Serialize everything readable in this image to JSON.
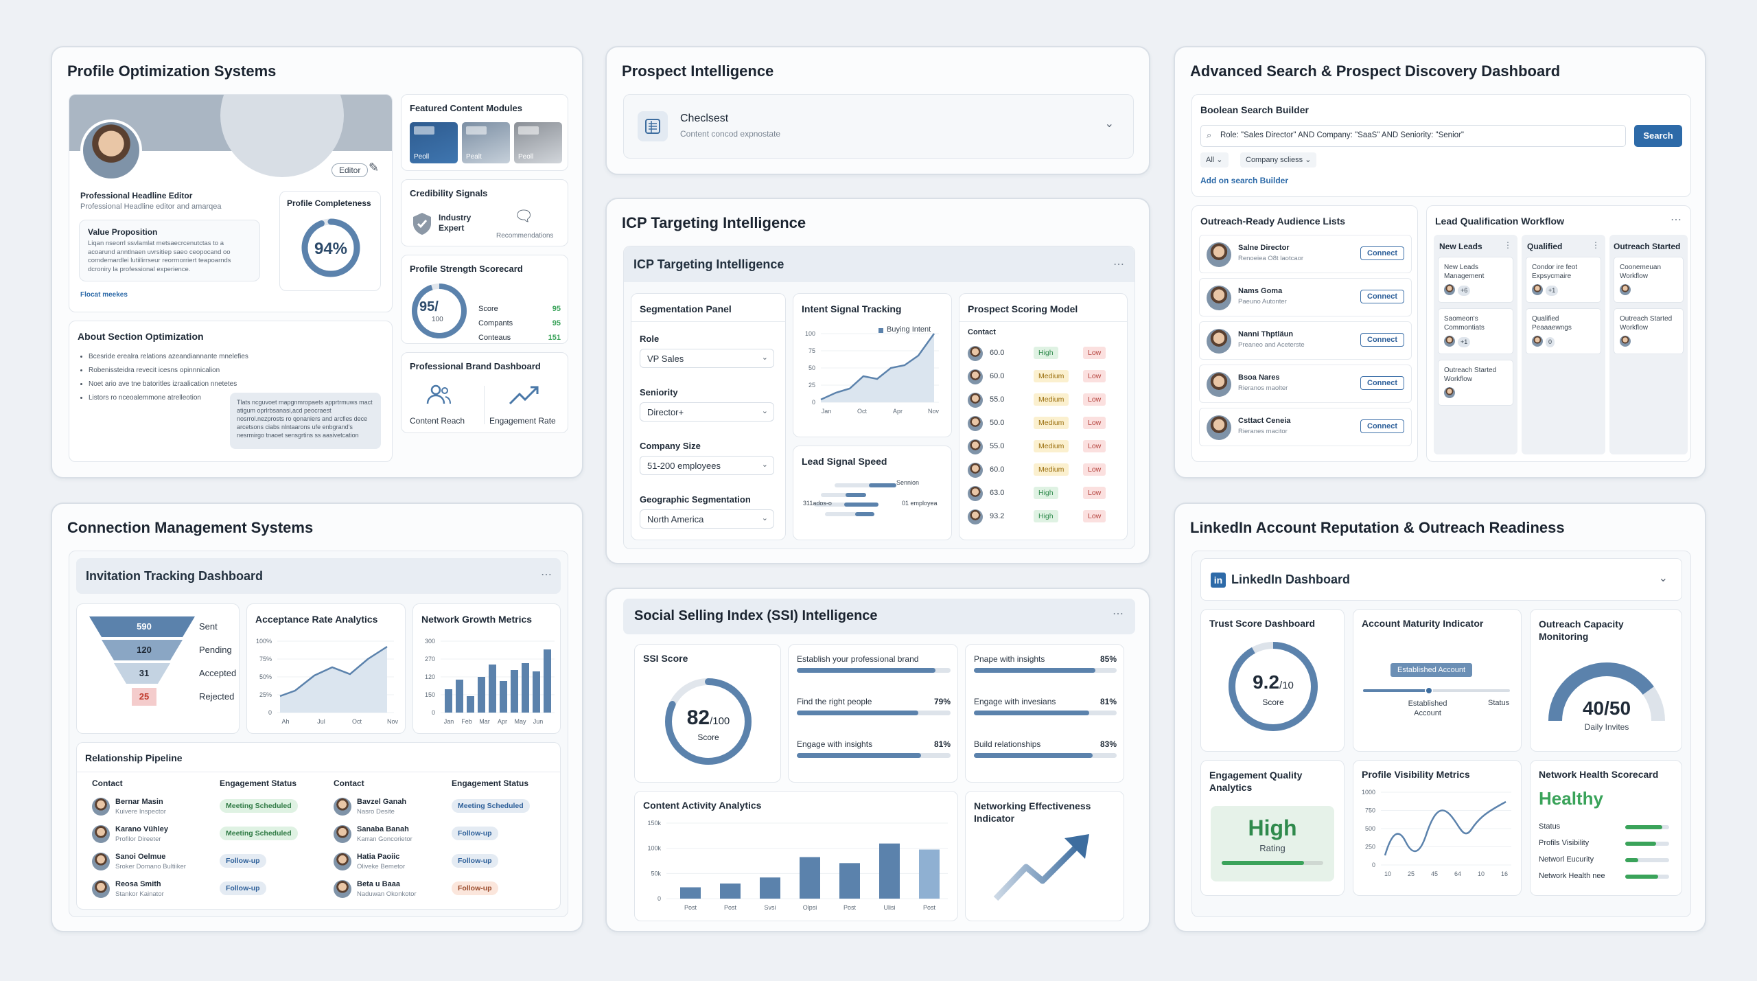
{
  "profile": {
    "title": "Profile Optimization Systems",
    "editor_badge": "Editor",
    "headline_title": "Professional Headline Editor",
    "headline_sub": "Professional Headline editor and amarqea",
    "value_prop_title": "Value Proposition",
    "value_prop_text": "Liqan nseorrl ssvlamlat metsaecrcenutctas to a acoarund anntlnaen uvrsitiep saeo ceopocand oo comdemardlei lutiilirrseur reorrnorriert teapoarnds dcroniry la professional experience.",
    "value_link": "Flocat meekes",
    "completeness_title": "Profile Completeness",
    "completeness_value": "94%",
    "completeness_pct": 94,
    "featured_title": "Featured Content Modules",
    "featured_items": [
      "Peoll",
      "Pealt",
      "Peoll"
    ],
    "credibility_title": "Credibility Signals",
    "credibility_item1": "Industry Expert",
    "credibility_item2": "Recommendations",
    "about_title": "About Section Optimization",
    "about_bullets": [
      "Bcesride erealra relations azeandiannante mnelefies",
      "Robenissteidra revecit icesns opinnnicalion",
      "Noet ario ave tne batoritles izraalication nnetetes",
      "Listors ro nceoalemmone atrelleotion"
    ],
    "about_tooltip": "Tlats ncguvoet mapgnmropaets apprtrmuws mact atigum oprlrbsanasi,acd peocraest nosrrol.nezprosts ro qonaniers and arcfies dece arcetsons ciabs nlntaarons ufe enbgrand's nesrmirgo tnaoet sensgrtins ss aasivetcation",
    "strength_title": "Profile Strength Scorecard",
    "strength_value": "95/",
    "strength_denom": "100",
    "strength_rows": [
      {
        "label": "Score",
        "value": "95"
      },
      {
        "label": "Compants",
        "value": "95"
      },
      {
        "label": "Conteaus",
        "value": "151"
      }
    ],
    "brand_title": "Professional Brand Dashboard",
    "brand_item1": "Content Reach",
    "brand_item2": "Engagement Rate"
  },
  "prospect": {
    "title": "Prospect Intelligence",
    "item_title": "Checlsest",
    "item_sub": "Content concod expnostate"
  },
  "icp": {
    "title": "ICP Targeting Intelligence",
    "inner_title": "ICP Targeting Intelligence",
    "seg_title": "Segmentation Panel",
    "role_label": "Role",
    "role_value": "VP Sales",
    "seniority_label": "Seniority",
    "seniority_value": "Director+",
    "size_label": "Company Size",
    "size_value": "51-200 employees",
    "geo_label": "Geographic Segmentation",
    "geo_value": "North America",
    "intent_title": "Intent Signal Tracking",
    "intent_legend": "Buying Intent",
    "intent_y": [
      "100",
      "75",
      "50",
      "25",
      "0"
    ],
    "intent_x": [
      "Jan",
      "Oct",
      "Apr",
      "Nov"
    ],
    "speed_title": "Lead Signal Speed",
    "speed_label1": "Sennion",
    "speed_label2": "311ados-o",
    "speed_label3": "01 employea",
    "scoring_title": "Prospect Scoring Model",
    "scoring_header": "Contact",
    "scoring_rows": [
      {
        "score": "60.0",
        "level": "High",
        "risk": "Low"
      },
      {
        "score": "60.0",
        "level": "Medium",
        "risk": "Low"
      },
      {
        "score": "55.0",
        "level": "Medium",
        "risk": "Low"
      },
      {
        "score": "50.0",
        "level": "Medium",
        "risk": "Low"
      },
      {
        "score": "55.0",
        "level": "Medium",
        "risk": "Low"
      },
      {
        "score": "60.0",
        "level": "Medium",
        "risk": "Low"
      },
      {
        "score": "63.0",
        "level": "High",
        "risk": "Low"
      },
      {
        "score": "93.2",
        "level": "High",
        "risk": "Low"
      }
    ]
  },
  "search": {
    "title": "Advanced Search & Prospect Discovery Dashboard",
    "builder_title": "Boolean Search Builder",
    "query": "Role: \"Sales Director\" AND Company: \"SaaS\" AND Seniority: \"Senior\"",
    "search_button": "Search",
    "filter_all": "All",
    "filter_company": "Company scliess",
    "add_link": "Add on search Builder",
    "lists_title": "Outreach-Ready Audience Lists",
    "connect_label": "Connect",
    "people": [
      {
        "name": "Salne Director",
        "sub": "Renoeiea O8t laotcaor"
      },
      {
        "name": "Nams Goma",
        "sub": "Paeuno Autonter"
      },
      {
        "name": "Nanni Thptläun",
        "sub": "Preaneo and Aceterste"
      },
      {
        "name": "Bsoa Nares",
        "sub": "Rieranos maolter"
      },
      {
        "name": "Csttact Ceneia",
        "sub": "Rieranes macitor"
      }
    ],
    "workflow_title": "Lead Qualification Workflow",
    "col1": "New Leads",
    "col2": "Qualified",
    "col3": "Outreach Started",
    "col1_cards": [
      {
        "text": "New Leads Management",
        "count": "+6"
      },
      {
        "text": "Saomeon's Commontiats",
        "count": "+1"
      },
      {
        "text": "Outreach Started Workflow",
        "count": ""
      }
    ],
    "col2_cards": [
      {
        "text": "Condor ire feot Expsycmaire",
        "count": "+1"
      },
      {
        "text": "Qualified Peaaaewngs",
        "count": "0"
      }
    ],
    "col3_cards": [
      {
        "text": "Coonemeuan Workflow",
        "count": ""
      },
      {
        "text": "Outreach Started Workflow",
        "count": ""
      }
    ]
  },
  "connections": {
    "title": "Connection Management Systems",
    "inner_title": "Invitation Tracking Dashboard",
    "funnel": [
      {
        "label": "Sent",
        "value": "590"
      },
      {
        "label": "Pending",
        "value": "120"
      },
      {
        "label": "Accepted",
        "value": "31"
      },
      {
        "label": "Rejected",
        "value": "25"
      }
    ],
    "acceptance_title": "Acceptance Rate Analytics",
    "acceptance_y": [
      "100%",
      "75%",
      "50%",
      "25%",
      "0"
    ],
    "acceptance_x": [
      "Ah",
      "Jul",
      "Oct",
      "Nov"
    ],
    "growth_title": "Network Growth Metrics",
    "growth_y": [
      "300",
      "270",
      "120",
      "150",
      "0"
    ],
    "growth_x": [
      "Jan",
      "Feb",
      "Mar",
      "Apr",
      "May",
      "Jun"
    ],
    "pipeline_title": "Relationship Pipeline",
    "pipeline_h1": "Contact",
    "pipeline_h2": "Engagement Status",
    "pipeline_h3": "Contact",
    "pipeline_h4": "Engagement Status",
    "pipeline_left": [
      {
        "name": "Bernar Masin",
        "sub": "Kuivere Inspector",
        "status": "Meeting Scheduled"
      },
      {
        "name": "Karano Vühley",
        "sub": "Profilor Direeter",
        "status": "Meeting Scheduled"
      },
      {
        "name": "Sanoi Oelmue",
        "sub": "Sroker Domano Bultiiker",
        "status": "Follow-up"
      },
      {
        "name": "Reosa Smith",
        "sub": "Stankor Kainator",
        "status": "Follow-up"
      }
    ],
    "pipeline_right": [
      {
        "name": "Bavzel Ganah",
        "sub": "Nasro Desite",
        "status": "Meeting Scheduled"
      },
      {
        "name": "Sanaba Banah",
        "sub": "Karran Goncorietor",
        "status": "Follow-up"
      },
      {
        "name": "Hatia Paoiic",
        "sub": "Oliveke Bemetor",
        "status": "Follow-up"
      },
      {
        "name": "Beta u Baaa",
        "sub": "Naduwan Okonkotor",
        "status": "Follow-up"
      }
    ]
  },
  "ssi": {
    "title": "Social Selling Index (SSI) Intelligence",
    "score_title": "SSI Score",
    "score_value": "82",
    "score_denom": "/100",
    "score_label": "Score",
    "score_pct": 82,
    "metrics_left": [
      {
        "label": "Establish your professional brand",
        "value": "",
        "pct": 90
      },
      {
        "label": "Find the right people",
        "value": "79%",
        "pct": 79
      },
      {
        "label": "Engage with insights",
        "value": "81%",
        "pct": 81
      }
    ],
    "metrics_right": [
      {
        "label": "Pnape with insights",
        "value": "85%",
        "pct": 85
      },
      {
        "label": "Engage with invesians",
        "value": "81%",
        "pct": 81
      },
      {
        "label": "Build relationships",
        "value": "83%",
        "pct": 83
      }
    ],
    "activity_title": "Content Activity Analytics",
    "activity_y": [
      "150k",
      "100k",
      "50k",
      "0"
    ],
    "activity_x": [
      "Post",
      "Post",
      "Svsi",
      "Olpsi",
      "Post",
      "Ulisi",
      "Post"
    ],
    "networking_title": "Networking Effectiveness Indicator"
  },
  "reputation": {
    "title": "LinkedIn Account Reputation & Outreach Readiness",
    "dashboard_label": "LinkedIn Dashboard",
    "trust_title": "Trust Score Dashboard",
    "trust_value": "9.2",
    "trust_denom": "/10",
    "trust_label": "Score",
    "maturity_title": "Account Maturity Indicator",
    "maturity_badge": "Established Account",
    "maturity_l1": "Established Account",
    "maturity_l2": "Status",
    "capacity_title": "Outreach Capacity Monitoring",
    "capacity_value": "40/50",
    "capacity_label": "Daily Invites",
    "engagement_title": "Engagement Quality Analytics",
    "engagement_value": "High",
    "engagement_label": "Rating",
    "visibility_title": "Profile Visibility Metrics",
    "visibility_y": [
      "1000",
      "750",
      "500",
      "250",
      "0"
    ],
    "visibility_x": [
      "10",
      "25",
      "45",
      "64",
      "10",
      "16"
    ],
    "health_title": "Network Health Scorecard",
    "health_value": "Healthy",
    "health_rows": [
      {
        "label": "Status",
        "pct": 85
      },
      {
        "label": "Profils Visibility",
        "pct": 70
      },
      {
        "label": "Networl Eucurity",
        "pct": 30
      },
      {
        "label": "Network Health nee",
        "pct": 75
      }
    ]
  },
  "colors": {
    "accent": "#5b82ac",
    "primary": "#2d6aa8",
    "green": "#3aa35a",
    "bg": "#eef1f5"
  }
}
